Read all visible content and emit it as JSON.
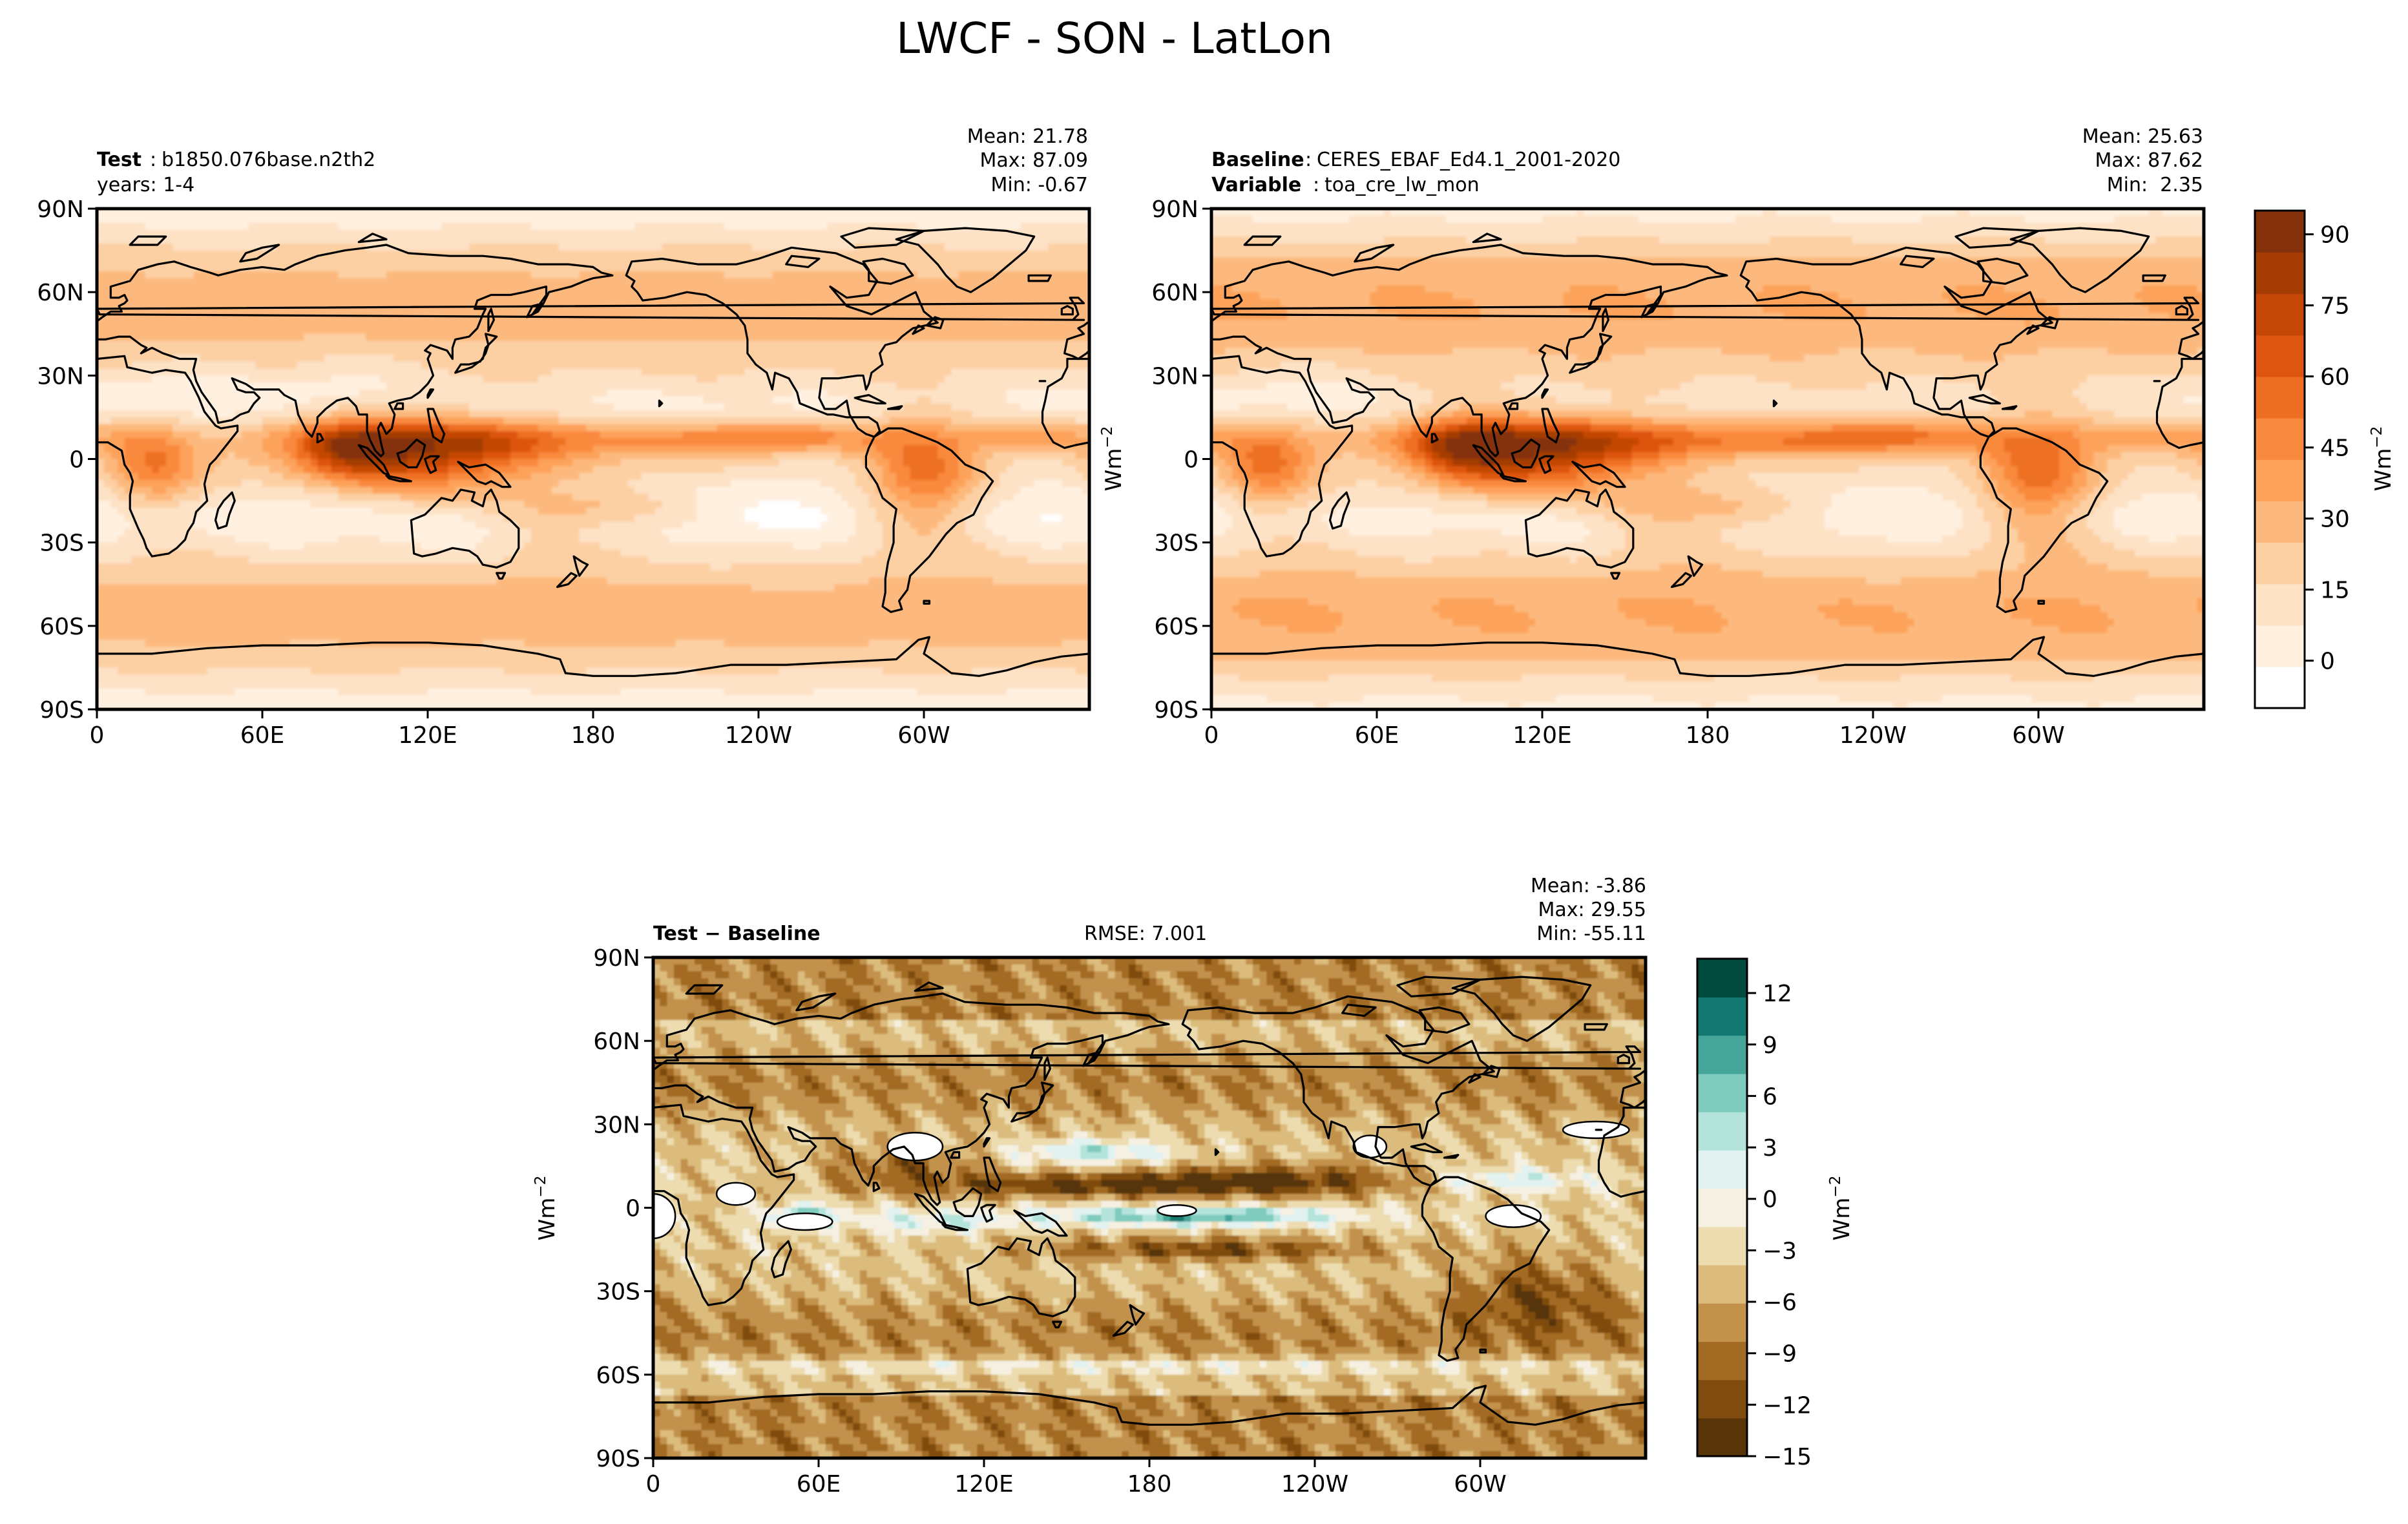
{
  "figure": {
    "title": "LWCF - SON - LatLon"
  },
  "colors": {
    "test_baseline_cmap": [
      "#ffffff",
      "#fff0e0",
      "#fde2c6",
      "#fdd0a4",
      "#fdb97d",
      "#fda25a",
      "#f9893e",
      "#ee6f22",
      "#dd5510",
      "#c44706",
      "#a53c04",
      "#84300a"
    ],
    "diff_cmap": [
      "#573508",
      "#7f4b0e",
      "#a26b24",
      "#c2924d",
      "#dbbc7c",
      "#ecdcb0",
      "#f5f0e2",
      "#e1f2f0",
      "#b4e3dc",
      "#7fcbbe",
      "#45a599",
      "#13786f",
      "#004a3e"
    ],
    "land_outline": "#000000",
    "missing": "#ffffff"
  },
  "chart_data": [
    {
      "type": "heatmap",
      "panel": "test",
      "label_bold": "Test",
      "label_value": "b1850.076base.n2th2",
      "line2_text": "years: 1-4",
      "stats": [
        "Mean: 21.78",
        "Max: 87.09",
        "Min: -0.67"
      ],
      "xlabel": "",
      "ylabel": "",
      "xticks": [
        "0",
        "60E",
        "120E",
        "180",
        "120W",
        "60W"
      ],
      "yticks": [
        "90N",
        "60N",
        "30N",
        "0",
        "30S",
        "60S",
        "90S"
      ],
      "xlim": [
        0,
        360
      ],
      "ylim": [
        -90,
        90
      ],
      "colormap": "Oranges",
      "field_description": "LWCF longwave cloud forcing, SON season; maxima along ITCZ, Maritime Continent, Amazon, central Africa",
      "mean": 21.78,
      "max": 87.09,
      "min": -0.67
    },
    {
      "type": "heatmap",
      "panel": "baseline",
      "label_bold": "Baseline",
      "label_value": "CERES_EBAF_Ed4.1_2001-2020",
      "line2_bold": "Variable",
      "line2_value": "toa_cre_lw_mon",
      "stats": [
        "Mean: 25.63",
        "Max: 87.62",
        "Min:  2.35"
      ],
      "xlabel": "",
      "ylabel": "",
      "xticks": [
        "0",
        "60E",
        "120E",
        "180",
        "120W",
        "60W"
      ],
      "yticks": [
        "90N",
        "60N",
        "30N",
        "0",
        "30S",
        "60S",
        "90S"
      ],
      "xlim": [
        0,
        360
      ],
      "ylim": [
        -90,
        90
      ],
      "colormap": "Oranges",
      "colorbar": {
        "ticks": [
          "90",
          "75",
          "60",
          "45",
          "30",
          "15",
          "0"
        ],
        "tick_values": [
          90,
          75,
          60,
          45,
          30,
          15,
          0
        ],
        "range": [
          -10,
          95
        ],
        "label": "Wm",
        "label_exp": "−2"
      },
      "mean": 25.63,
      "max": 87.62,
      "min": 2.35
    },
    {
      "type": "heatmap",
      "panel": "diff",
      "label_bold": "Test − Baseline",
      "rmse": "RMSE: 7.001",
      "stats": [
        "Mean: -3.86",
        "Max: 29.55",
        "Min: -55.11"
      ],
      "xlabel": "",
      "ylabel": "Wm",
      "ylabel_exp": "−2",
      "xticks": [
        "0",
        "60E",
        "120E",
        "180",
        "120W",
        "60W"
      ],
      "yticks": [
        "90N",
        "60N",
        "30N",
        "0",
        "30S",
        "60S",
        "90S"
      ],
      "xlim": [
        0,
        360
      ],
      "ylim": [
        -90,
        90
      ],
      "colormap": "BrBG",
      "colorbar": {
        "ticks": [
          "12",
          "9",
          "6",
          "3",
          "0",
          "−3",
          "−6",
          "−9",
          "−12",
          "−15"
        ],
        "tick_values": [
          12,
          9,
          6,
          3,
          0,
          -3,
          -6,
          -9,
          -12,
          -15
        ],
        "range": [
          -15,
          14
        ],
        "label": "Wm",
        "label_exp": "−2"
      },
      "mean": -3.86,
      "max": 29.55,
      "min": -55.11
    }
  ],
  "shared_ylabel": {
    "text": "Wm",
    "exp": "−2"
  }
}
